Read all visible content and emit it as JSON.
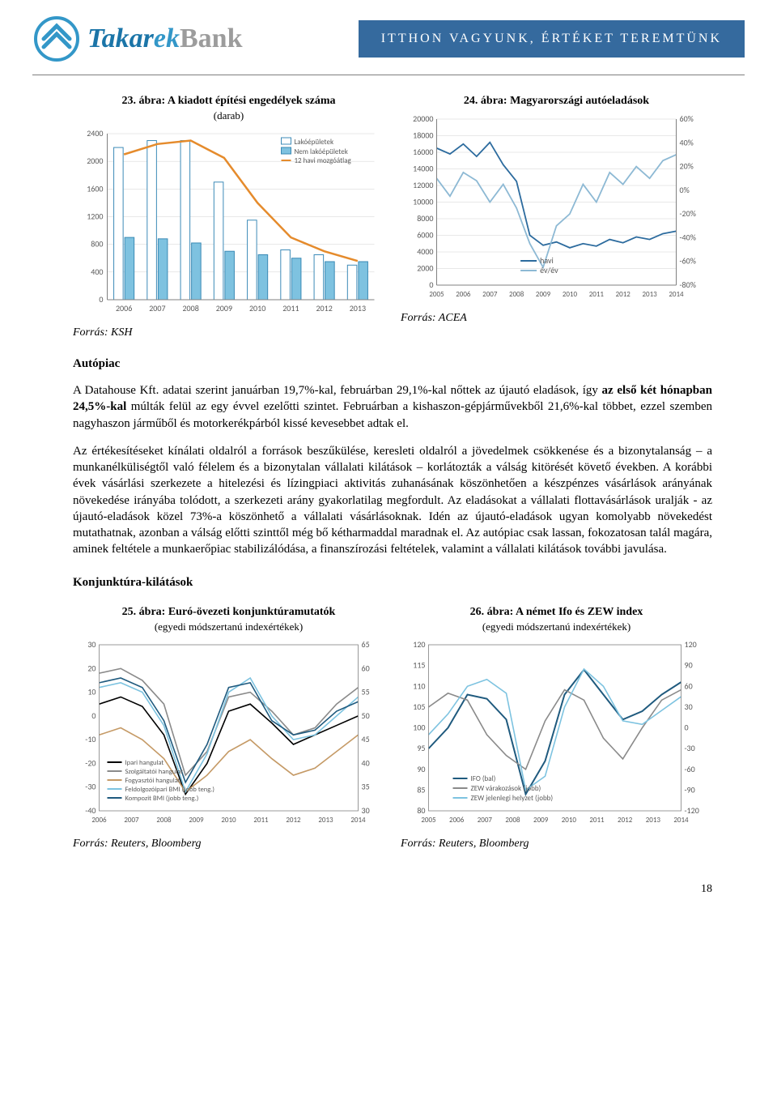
{
  "header": {
    "logo_main": "Takarek",
    "logo_suffix": "Bank",
    "tagline": "ITTHON VAGYUNK, ÉRTÉKET TEREMTÜNK",
    "logo_colors": {
      "primary": "#1b75a8",
      "mid": "#3397c8",
      "suffix": "#9c9c9c",
      "tagline_bg": "#356a9e"
    }
  },
  "chart23": {
    "title": "23. ábra: A kiadott építési engedélyek száma",
    "subtitle": "(darab)",
    "type": "bar+line",
    "x_years": [
      2006,
      2007,
      2008,
      2009,
      2010,
      2011,
      2012,
      2013
    ],
    "y_ticks": [
      0,
      400,
      800,
      1200,
      1600,
      2000,
      2400
    ],
    "series_bars_lako": [
      2200,
      2300,
      2300,
      1700,
      1150,
      720,
      650,
      500
    ],
    "series_bars_nemlako": [
      900,
      880,
      820,
      700,
      650,
      600,
      550,
      550
    ],
    "series_line_mozgo": [
      2100,
      2250,
      2300,
      2050,
      1400,
      900,
      700,
      560
    ],
    "legend": [
      "Lakóépületek",
      "Nem lakóépületek",
      "12 havi mozgóátlag"
    ],
    "colors": {
      "bar_lako_fill": "#ffffff",
      "bar_lako_stroke": "#3d8bb8",
      "bar_nemlako_fill": "#7ec2e0",
      "bar_nemlako_stroke": "#3a8ab5",
      "line_mozgo": "#e58b2c",
      "axis": "#808080",
      "grid": "#d0d0d0",
      "text": "#595959"
    },
    "tick_fontsize": 10,
    "legend_fontsize": 9,
    "source_label": "Forrás: KSH"
  },
  "chart24": {
    "title": "24. ábra: Magyarországi autóeladások",
    "subtitle": "",
    "type": "line-dual-axis",
    "x_years": [
      2005,
      2006,
      2007,
      2008,
      2009,
      2010,
      2011,
      2012,
      2013,
      2014
    ],
    "y_left_ticks": [
      0,
      2000,
      4000,
      6000,
      8000,
      10000,
      12000,
      14000,
      16000,
      18000,
      20000
    ],
    "y_right_ticks": [
      "-80%",
      "-60%",
      "-40%",
      "-20%",
      "0%",
      "20%",
      "40%",
      "60%"
    ],
    "series_havi": [
      16500,
      15800,
      17000,
      15500,
      17200,
      14500,
      12500,
      6000,
      4800,
      5200,
      4500,
      5000,
      4700,
      5500,
      5100,
      5800,
      5500,
      6200,
      6500
    ],
    "series_ev_ev": [
      10,
      -5,
      15,
      8,
      -10,
      5,
      -15,
      -45,
      -65,
      -30,
      -20,
      5,
      -10,
      15,
      5,
      20,
      10,
      25,
      30
    ],
    "legend": [
      "havi",
      "év/év"
    ],
    "colors": {
      "line_havi": "#2c6b9e",
      "line_evev": "#8db9d4",
      "axis": "#808080",
      "grid": "#d0d0d0",
      "text": "#595959"
    },
    "tick_fontsize": 10,
    "legend_fontsize": 10,
    "source_label": "Forrás: ACEA"
  },
  "autopiac": {
    "heading": "Autópiac",
    "para1": "A Datahouse Kft. adatai szerint januárban 19,7%-kal, februárban 29,1%-kal nőttek az újautó eladások, így az első két hónapban 24,5%-kal múlták felül az egy évvel ezelőtti szintet. Februárban a kishaszon-gépjárművekből 21,6%-kal többet, ezzel szemben nagyhaszon járműből és motorkerékpárból kissé kevesebbet adtak el.",
    "bold1_prefix": "az első két hónapban 24,5%-kal",
    "para2": "Az értékesítéseket kínálati oldalról a források beszűkülése, keresleti oldalról a jövedelmek csökkenése és a bizonytalanság – a munkanélküliségtől való félelem és a bizonytalan vállalati kilátások – korlátozták a válság kitörését követő években. A korábbi évek vásárlási szerkezete a hitelezési és lízingpiaci aktivitás zuhanásának köszönhetően a készpénzes vásárlások arányának növekedése irányába tolódott, a szerkezeti arány gyakorlatilag megfordult. Az eladásokat a vállalati flottavásárlások uralják - az újautó-eladások közel 73%-a köszönhető a vállalati vásárlásoknak. Idén az újautó-eladások ugyan komolyabb növekedést mutathatnak, azonban a válság előtti szinttől még bő kétharmaddal maradnak el. Az autópiac csak lassan, fokozatosan talál magára, aminek feltétele a munkaerőpiac stabilizálódása, a finanszírozási feltételek, valamint a vállalati kilátások további javulása."
  },
  "konjunktura_heading": "Konjunktúra-kilátások",
  "chart25": {
    "title": "25. ábra: Euró-övezeti konjunktúramutatók",
    "subtitle": "(egyedi módszertanú indexértékek)",
    "type": "multi-line-dual-axis",
    "x_years": [
      2006,
      2007,
      2008,
      2009,
      2010,
      2011,
      2012,
      2013,
      2014
    ],
    "y_left_ticks": [
      -40,
      -30,
      -20,
      -10,
      0,
      10,
      20,
      30
    ],
    "y_right_ticks": [
      30,
      35,
      40,
      45,
      50,
      55,
      60,
      65
    ],
    "series": {
      "ipari": [
        5,
        8,
        4,
        -8,
        -33,
        -20,
        2,
        5,
        -3,
        -12,
        -8,
        -4,
        0
      ],
      "szolgaltatoi": [
        18,
        20,
        15,
        5,
        -25,
        -15,
        8,
        10,
        2,
        -8,
        -5,
        5,
        12
      ],
      "fogyasztoi": [
        -8,
        -5,
        -10,
        -18,
        -32,
        -25,
        -15,
        -10,
        -18,
        -25,
        -22,
        -15,
        -8
      ],
      "feldolgozo": [
        56,
        57,
        55,
        48,
        34,
        42,
        55,
        58,
        50,
        45,
        46,
        50,
        54
      ],
      "kompozit": [
        57,
        58,
        56,
        49,
        36,
        44,
        56,
        57,
        49,
        46,
        47,
        51,
        53
      ]
    },
    "legend": [
      "Ipari hangulat",
      "Szolgáltatói hangulat",
      "Fogyasztói hangulat",
      "Feldolgozóipari BMI (jobb teng.)",
      "Kompozit BMI (jobb teng.)"
    ],
    "colors": {
      "ipari": "#000000",
      "szolgaltatoi": "#8a8a8a",
      "fogyasztoi": "#c59a66",
      "feldolgozo": "#7dc3e0",
      "kompozit": "#1f5a7e",
      "axis": "#808080",
      "text": "#595959"
    },
    "tick_fontsize": 10,
    "legend_fontsize": 8.5,
    "source_label": "Forrás: Reuters, Bloomberg"
  },
  "chart26": {
    "title": "26. ábra: A német Ifo és ZEW index",
    "subtitle": "(egyedi módszertanú indexértékek)",
    "type": "multi-line-dual-axis",
    "x_years": [
      2005,
      2006,
      2007,
      2008,
      2009,
      2010,
      2011,
      2012,
      2013,
      2014
    ],
    "y_left_ticks": [
      80,
      85,
      90,
      95,
      100,
      105,
      110,
      115,
      120
    ],
    "y_right_ticks": [
      -120,
      -90,
      -60,
      -30,
      0,
      30,
      60,
      90,
      120
    ],
    "series": {
      "ifo": [
        95,
        100,
        108,
        107,
        102,
        84,
        92,
        108,
        114,
        108,
        102,
        104,
        108,
        111
      ],
      "zew_var": [
        30,
        50,
        40,
        -10,
        -40,
        -60,
        10,
        55,
        40,
        -15,
        -45,
        0,
        40,
        55
      ],
      "zew_jel": [
        -10,
        20,
        60,
        70,
        50,
        -90,
        -70,
        30,
        85,
        60,
        10,
        5,
        25,
        45
      ]
    },
    "legend": [
      "IFO (bal)",
      "ZEW várakozások (jobb)",
      "ZEW jelenlegi helyzet (jobb)"
    ],
    "colors": {
      "ifo": "#1f5a7e",
      "zew_var": "#8a8a8a",
      "zew_jel": "#7dc3e0",
      "axis": "#808080",
      "text": "#595959"
    },
    "tick_fontsize": 10,
    "legend_fontsize": 9,
    "source_label": "Forrás: Reuters, Bloomberg"
  },
  "page_number": "18"
}
